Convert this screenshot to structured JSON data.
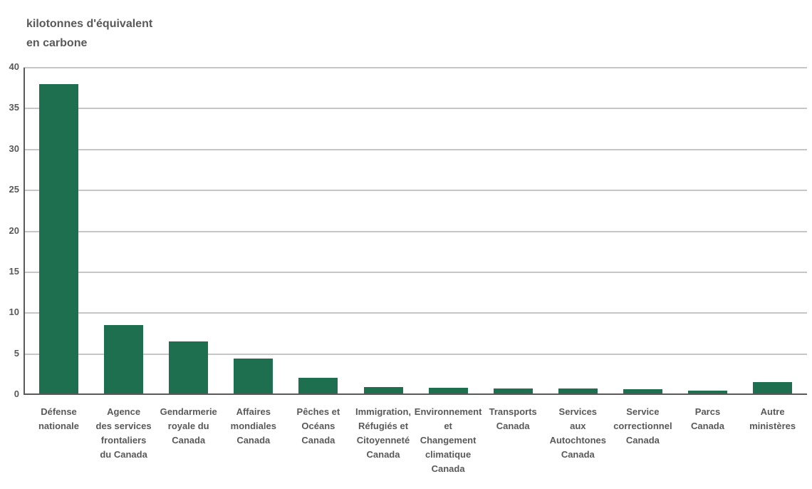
{
  "ui": {
    "title_lines": [
      "kilotonnes d'équivalent",
      "en carbone"
    ]
  },
  "colors": {
    "bar": "#1E6E50",
    "axis": "#595959",
    "grid": "#C6C6C6",
    "text": "#595959",
    "background": "#FFFFFF"
  },
  "chart_data": {
    "type": "bar",
    "title": "kilotonnes d'équivalent en carbone",
    "xlabel": "",
    "ylabel": "kilotonnes d'équivalent en carbone",
    "ylim": [
      0,
      40
    ],
    "yticks": [
      0,
      5,
      10,
      15,
      20,
      25,
      30,
      35,
      40
    ],
    "grid": "horizontal",
    "legend": "none",
    "bar_color": "#1E6E50",
    "categories": [
      "Défense nationale",
      "Agence des services frontaliers du Canada",
      "Gendarmerie royale du Canada",
      "Affaires mondiales Canada",
      "Pêches et Océans Canada",
      "Immigration, Réfugiés et Citoyenneté Canada",
      "Environnement et Changement climatique Canada",
      "Transports Canada",
      "Services aux Autochtones Canada",
      "Service correctionnel Canada",
      "Parcs Canada",
      "Autre ministères"
    ],
    "category_label_lines": [
      [
        "Défense",
        "nationale"
      ],
      [
        "Agence",
        "des services",
        "frontaliers",
        "du Canada"
      ],
      [
        "Gendarmerie",
        "royale du",
        "Canada"
      ],
      [
        "Affaires",
        "mondiales",
        "Canada"
      ],
      [
        "Pêches et",
        "Océans",
        "Canada"
      ],
      [
        "Immigration,",
        "Réfugiés et",
        "Citoyenneté",
        "Canada"
      ],
      [
        "Environnement",
        "et",
        "Changement",
        "climatique",
        "Canada"
      ],
      [
        "Transports",
        "Canada"
      ],
      [
        "Services",
        "aux",
        "Autochtones",
        "Canada"
      ],
      [
        "Service",
        "correctionnel",
        "Canada"
      ],
      [
        "Parcs",
        "Canada"
      ],
      [
        "Autre",
        "ministères"
      ]
    ],
    "values": [
      37.8,
      8.4,
      6.4,
      4.3,
      1.9,
      0.8,
      0.7,
      0.6,
      0.6,
      0.5,
      0.35,
      1.4
    ]
  }
}
